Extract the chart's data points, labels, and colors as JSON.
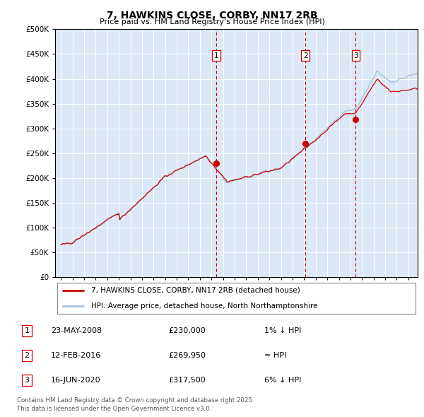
{
  "title": "7, HAWKINS CLOSE, CORBY, NN17 2RB",
  "subtitle": "Price paid vs. HM Land Registry's House Price Index (HPI)",
  "legend_line1": "7, HAWKINS CLOSE, CORBY, NN17 2RB (detached house)",
  "legend_line2": "HPI: Average price, detached house, North Northamptonshire",
  "footnote": "Contains HM Land Registry data © Crown copyright and database right 2025.\nThis data is licensed under the Open Government Licence v3.0.",
  "transactions": [
    {
      "num": 1,
      "date": "23-MAY-2008",
      "date_x": 2008.39,
      "price": 230000,
      "note": "1% ↓ HPI"
    },
    {
      "num": 2,
      "date": "12-FEB-2016",
      "date_x": 2016.12,
      "price": 269950,
      "note": "≈ HPI"
    },
    {
      "num": 3,
      "date": "16-JUN-2020",
      "date_x": 2020.46,
      "price": 317500,
      "note": "6% ↓ HPI"
    }
  ],
  "hpi_color": "#aac4e0",
  "price_color": "#cc0000",
  "dot_color": "#cc0000",
  "plot_bg": "#dce8f5",
  "grid_color": "#ffffff",
  "dashed_line_color": "#cc0000",
  "ylim": [
    0,
    500000
  ],
  "yticks": [
    0,
    50000,
    100000,
    150000,
    200000,
    250000,
    300000,
    350000,
    400000,
    450000,
    500000
  ],
  "xlim_start": 1994.5,
  "xlim_end": 2025.8,
  "xticks": [
    1995,
    1996,
    1997,
    1998,
    1999,
    2000,
    2001,
    2002,
    2003,
    2004,
    2005,
    2006,
    2007,
    2008,
    2009,
    2010,
    2011,
    2012,
    2013,
    2014,
    2015,
    2016,
    2017,
    2018,
    2019,
    2020,
    2021,
    2022,
    2023,
    2024,
    2025
  ]
}
